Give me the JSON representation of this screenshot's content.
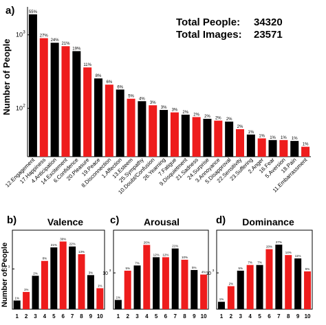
{
  "figure": {
    "panel_a_label": "a)",
    "panel_b_label": "b)",
    "panel_c_label": "c)",
    "panel_d_label": "d)",
    "total_people_label": "Total  People:",
    "total_people_value": "34320",
    "total_images_label": "Total  Images:",
    "total_images_value": "23571",
    "small_ylabel": "Number of People"
  },
  "colors": {
    "black": "#000000",
    "red": "#ee1c1c",
    "frame": "#000000"
  },
  "chart_data": [
    {
      "id": "a",
      "type": "bar",
      "ylabel": "Number of People",
      "yscale": "log",
      "ylim": [
        22,
        2400
      ],
      "y_ticks": [
        {
          "value": 10,
          "label": "10",
          "exp": "1"
        },
        {
          "value": 100,
          "label": "10",
          "exp": "2"
        },
        {
          "value": 1000,
          "label": "10",
          "exp": "3"
        }
      ],
      "categories": [
        "12.Engagement",
        "17.Happiness",
        "4.Anticipation",
        "14.Excitement",
        "6.Confidence",
        "20.Pleasure",
        "19.Peace",
        "8.Disconnection",
        "1.Affection",
        "13.Esteem",
        "25.Sympathy",
        "10.Doubt/Confusion",
        "26.Yearning",
        "7.Fatigue",
        "9.Disquietment",
        "21.Sadness",
        "24.Surprise",
        "3.Annoyance",
        "5.Disapproval",
        "22.Sensitivity",
        "23.Suffering",
        "2.Anger",
        "16.Fear",
        "5.Aversion",
        "18.Pain",
        "11.Embarrassment"
      ],
      "values": [
        1900,
        900,
        780,
        700,
        600,
        360,
        255,
        210,
        180,
        135,
        125,
        110,
        95,
        88,
        82,
        76,
        72,
        68,
        66,
        52,
        44,
        39,
        37,
        37,
        36,
        30
      ],
      "labels": [
        "55%",
        "27%",
        "24%",
        "21%",
        "19%",
        "11%",
        "8%",
        "6%",
        "6%",
        "5%",
        "4%",
        "3%",
        "3%",
        "3%",
        "2%",
        "2%",
        "2%",
        "2%",
        "2%",
        "2%",
        "1%",
        "1%",
        "1%",
        "1%",
        "1%",
        "1%"
      ],
      "colors": [
        "black",
        "red",
        "black",
        "red",
        "black",
        "red",
        "black",
        "red",
        "black",
        "red",
        "black",
        "red",
        "black",
        "red",
        "black",
        "red",
        "black",
        "red",
        "black",
        "red",
        "black",
        "red",
        "black",
        "red",
        "black",
        "red"
      ]
    },
    {
      "id": "b",
      "type": "bar",
      "title": "Valence",
      "yscale": "log",
      "ylim": [
        60,
        15000
      ],
      "y_ticks": [
        {
          "value": 1000,
          "label": "10",
          "exp": "3"
        }
      ],
      "categories": [
        "1",
        "2",
        "3",
        "4",
        "5",
        "6",
        "7",
        "8",
        "9",
        "10"
      ],
      "values": [
        110,
        200,
        620,
        1750,
        4500,
        6800,
        4800,
        2800,
        650,
        260
      ],
      "labels": [
        "1%",
        "1%",
        "2%",
        "8%",
        "21%",
        "30%",
        "22%",
        "13%",
        "3%",
        "1%"
      ],
      "colors": [
        "black",
        "red",
        "black",
        "red",
        "black",
        "red",
        "black",
        "red",
        "black",
        "red"
      ]
    },
    {
      "id": "c",
      "type": "bar",
      "title": "Arousal",
      "yscale": "log",
      "ylim": [
        100,
        15000
      ],
      "y_ticks": [
        {
          "value": 1000,
          "label": "10",
          "exp": "3"
        }
      ],
      "categories": [
        "1",
        "2",
        "3",
        "4",
        "5",
        "6",
        "7",
        "8",
        "9",
        "10"
      ],
      "values": [
        180,
        1150,
        1600,
        5900,
        2700,
        2700,
        4700,
        2300,
        1200,
        900
      ],
      "labels": [
        "1%",
        "5%",
        "7%",
        "26%",
        "12%",
        "12%",
        "21%",
        "10%",
        "5%",
        "4%"
      ],
      "colors": [
        "black",
        "red",
        "black",
        "red",
        "black",
        "red",
        "black",
        "red",
        "black",
        "red"
      ]
    },
    {
      "id": "d",
      "type": "bar",
      "title": "Dominance",
      "yscale": "log",
      "ylim": [
        100,
        15000
      ],
      "y_ticks": [
        {
          "value": 1000,
          "label": "10",
          "exp": "3"
        }
      ],
      "categories": [
        "1",
        "2",
        "3",
        "4",
        "5",
        "6",
        "7",
        "8",
        "9",
        "10"
      ],
      "values": [
        160,
        430,
        1150,
        1650,
        1650,
        4500,
        6000,
        3100,
        2500,
        1100
      ],
      "labels": [
        "1%",
        "2%",
        "5%",
        "7%",
        "7%",
        "20%",
        "27%",
        "14%",
        "11%",
        "5%"
      ],
      "colors": [
        "black",
        "red",
        "black",
        "red",
        "black",
        "red",
        "black",
        "red",
        "black",
        "red"
      ]
    }
  ]
}
